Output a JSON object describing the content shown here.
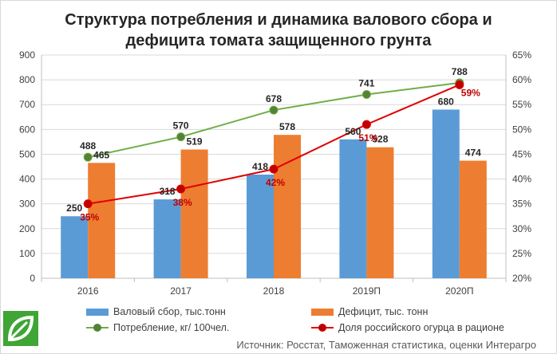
{
  "chart_data": {
    "type": "bar",
    "title_line1": "Структура потребления и динамика валового сбора и",
    "title_line2": "дефицита томата защищенного грунта",
    "categories": [
      "2016",
      "2017",
      "2018",
      "2019П",
      "2020П"
    ],
    "y_left": {
      "ylim": [
        0,
        900
      ],
      "ticks": [
        "0",
        "100",
        "200",
        "300",
        "400",
        "500",
        "600",
        "700",
        "800",
        "900"
      ]
    },
    "y_right": {
      "ylim": [
        20,
        65
      ],
      "ticks": [
        "20%",
        "25%",
        "30%",
        "35%",
        "40%",
        "45%",
        "50%",
        "55%",
        "60%",
        "65%"
      ]
    },
    "series": [
      {
        "name": "Валовый сбор, тыс.тонн",
        "type": "bar",
        "axis": "left",
        "color": "#5b9bd5",
        "values": [
          250,
          318,
          418,
          560,
          680
        ],
        "labels": [
          "250",
          "318",
          "418",
          "560",
          "680"
        ]
      },
      {
        "name": "Дефицит, тыс. тонн",
        "type": "bar",
        "axis": "left",
        "color": "#ed7d31",
        "values": [
          465,
          519,
          578,
          528,
          474
        ],
        "labels": [
          "465",
          "519",
          "578",
          "528",
          "474"
        ]
      },
      {
        "name": "Потребление, кг/ 100чел.",
        "type": "line",
        "axis": "left",
        "color": "#70ad47",
        "marker_color": "#548235",
        "values": [
          488,
          570,
          678,
          741,
          788
        ],
        "labels": [
          "488",
          "570",
          "678",
          "741",
          "788"
        ]
      },
      {
        "name": "Доля российского огурца в рационе",
        "type": "line",
        "axis": "right",
        "color": "#e00000",
        "marker_color": "#c00000",
        "values": [
          35,
          38,
          42,
          51,
          59
        ],
        "labels": [
          "35%",
          "38%",
          "42%",
          "51%",
          "59%"
        ]
      }
    ],
    "grid": true,
    "legend_position": "bottom"
  },
  "source": "Источник: Росстат, Таможенная статистика, оценки Интерагро",
  "logo_icon": "leaf-icon"
}
